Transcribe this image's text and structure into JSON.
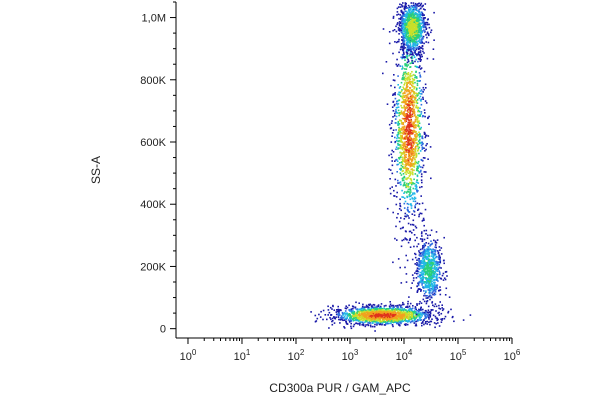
{
  "chart_data": {
    "type": "scatter",
    "subtype": "flow-cytometry-density-dot-plot",
    "title": "",
    "xlabel": "CD300a PUR / GAM_APC",
    "ylabel": "SS-A",
    "x_scale": "log",
    "y_scale": "linear",
    "xlim": [
      0.6,
      1000000
    ],
    "ylim": [
      -30000,
      1050000
    ],
    "grid": false,
    "legend": "none",
    "x_ticks": [
      {
        "value": 1,
        "base": "10",
        "exp": "0"
      },
      {
        "value": 10,
        "base": "10",
        "exp": "1"
      },
      {
        "value": 100,
        "base": "10",
        "exp": "2"
      },
      {
        "value": 1000,
        "base": "10",
        "exp": "3"
      },
      {
        "value": 10000,
        "base": "10",
        "exp": "4"
      },
      {
        "value": 100000,
        "base": "10",
        "exp": "5"
      },
      {
        "value": 1000000,
        "base": "10",
        "exp": "6"
      }
    ],
    "y_ticks": [
      {
        "value": 0,
        "label": "0"
      },
      {
        "value": 200000,
        "label": "200K"
      },
      {
        "value": 400000,
        "label": "400K"
      },
      {
        "value": 600000,
        "label": "600K"
      },
      {
        "value": 800000,
        "label": "800K"
      },
      {
        "value": 1000000,
        "label": "1,0M"
      }
    ],
    "density_colormap": [
      "#1a1aa8",
      "#2f6de0",
      "#22b8e8",
      "#2ad07a",
      "#c8e02a",
      "#f2a11f",
      "#e0321c"
    ],
    "populations": [
      {
        "x_center": 12000,
        "y_center": 650000,
        "x_spread_decades": 0.14,
        "y_spread": 150000,
        "relative_density": 1.0
      },
      {
        "x_center": 14000,
        "y_center": 970000,
        "x_spread_decades": 0.12,
        "y_spread": 40000,
        "relative_density": 0.7
      },
      {
        "x_center": 4000,
        "y_center": 45000,
        "x_spread_decades": 0.45,
        "y_spread": 15000,
        "relative_density": 1.0
      },
      {
        "x_center": 28000,
        "y_center": 190000,
        "x_spread_decades": 0.12,
        "y_spread": 50000,
        "relative_density": 0.5
      }
    ]
  }
}
